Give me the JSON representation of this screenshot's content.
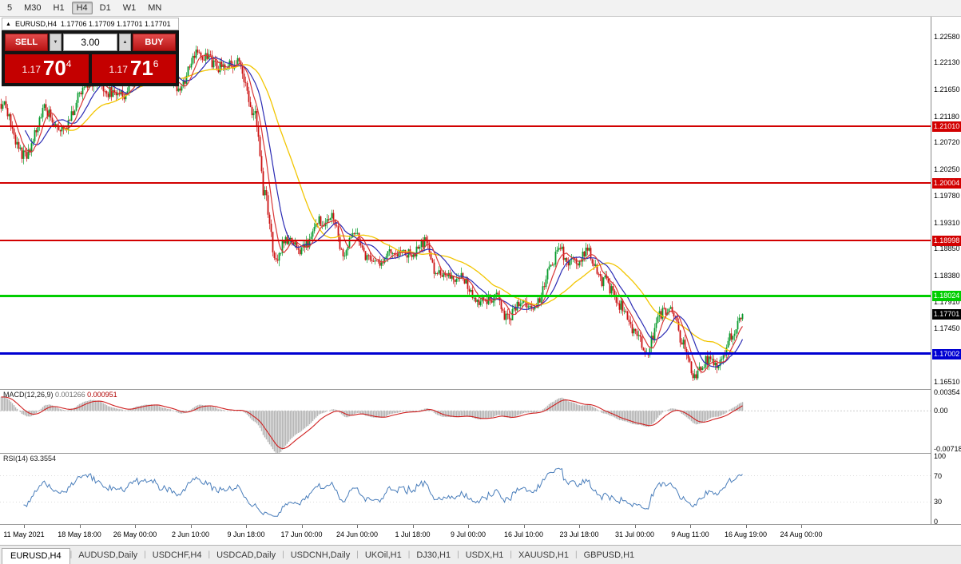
{
  "toolbar": {
    "timeframes": [
      {
        "label": "5",
        "active": false
      },
      {
        "label": "M30",
        "active": false
      },
      {
        "label": "H1",
        "active": false
      },
      {
        "label": "H4",
        "active": true
      },
      {
        "label": "D1",
        "active": false
      },
      {
        "label": "W1",
        "active": false
      },
      {
        "label": "MN",
        "active": false
      }
    ]
  },
  "chart_header": {
    "collapse_icon": "▲",
    "symbol": "EURUSD,H4",
    "ohlc": "1.17706 1.17709 1.17701 1.17701"
  },
  "trade_panel": {
    "sell_label": "SELL",
    "buy_label": "BUY",
    "lot_value": "3.00",
    "lot_down_icon": "▼",
    "lot_up_icon": "▲",
    "sell_price": {
      "prefix": "1.17",
      "main": "70",
      "sup": "4"
    },
    "buy_price": {
      "prefix": "1.17",
      "main": "71",
      "sup": "6"
    }
  },
  "price_axis_labels": [
    "1.22580",
    "1.22130",
    "1.21650",
    "1.21180",
    "1.20720",
    "1.20250",
    "1.19780",
    "1.19310",
    "1.18850",
    "1.18380",
    "1.17910",
    "1.17450",
    "1.16510"
  ],
  "current_price_marker": {
    "label": "1.17701",
    "value": 1.17701,
    "bg": "#000000"
  },
  "hlines": [
    {
      "label": "1.21010",
      "value": 1.2101,
      "color": "#d20000",
      "thickness": 2
    },
    {
      "label": "1.20004",
      "value": 1.20004,
      "color": "#d20000",
      "thickness": 2
    },
    {
      "label": "1.18998",
      "value": 1.18998,
      "color": "#d20000",
      "thickness": 2
    },
    {
      "label": "1.18024",
      "value": 1.18024,
      "color": "#00ce00",
      "thickness": 3
    },
    {
      "label": "1.17002",
      "value": 1.17002,
      "color": "#0000d2",
      "thickness": 3
    }
  ],
  "macd_panel": {
    "name": "MACD(12,26,9)",
    "main_value": "0.001266",
    "signal_value": "0.000951",
    "axis": [
      {
        "label": "0.00354",
        "value": 0.00354
      },
      {
        "label": "0.00",
        "value": 0
      },
      {
        "label": "-0.00718",
        "value": -0.00718
      }
    ]
  },
  "rsi_panel": {
    "name": "RSI(14)",
    "value": "63.3554",
    "axis": [
      {
        "label": "100",
        "value": 100
      },
      {
        "label": "70",
        "value": 70
      },
      {
        "label": "30",
        "value": 30
      },
      {
        "label": "0",
        "value": 0
      }
    ]
  },
  "time_axis": [
    "11 May 2021",
    "18 May 18:00",
    "26 May 00:00",
    "2 Jun 10:00",
    "9 Jun 18:00",
    "17 Jun 00:00",
    "24 Jun 00:00",
    "1 Jul 18:00",
    "9 Jul 00:00",
    "16 Jul 10:00",
    "23 Jul 18:00",
    "31 Jul 00:00",
    "9 Aug 11:00",
    "16 Aug 19:00",
    "24 Aug 00:00"
  ],
  "tabs": [
    {
      "label": "EURUSD,H4",
      "active": true
    },
    {
      "label": "AUDUSD,Daily",
      "active": false
    },
    {
      "label": "USDCHF,H4",
      "active": false
    },
    {
      "label": "USDCAD,Daily",
      "active": false
    },
    {
      "label": "USDCNH,Daily",
      "active": false
    },
    {
      "label": "UKOil,H1",
      "active": false
    },
    {
      "label": "DJ30,H1",
      "active": false
    },
    {
      "label": "USDX,H1",
      "active": false
    },
    {
      "label": "XAUUSD,H1",
      "active": false
    },
    {
      "label": "GBPUSD,H1",
      "active": false
    }
  ],
  "chart_data": {
    "type": "candlestick",
    "symbol": "EURUSD",
    "period": "H4",
    "price_range": [
      1.1638,
      1.2293
    ],
    "last_close": 1.17701,
    "up_color": "#089b2d",
    "down_color": "#cc1111",
    "levels": [
      1.2101,
      1.20004,
      1.18998,
      1.18024,
      1.17002
    ],
    "moving_averages": [
      {
        "period": 8,
        "color": "#d93636"
      },
      {
        "period": 16,
        "color": "#2b2bb4"
      },
      {
        "period": 40,
        "color": "#f2c500"
      }
    ],
    "macd": {
      "fast": 12,
      "slow": 26,
      "signal": 9,
      "current_main": 0.001266,
      "current_signal": 0.000951,
      "axis_range": [
        -0.008,
        0.004
      ]
    },
    "rsi": {
      "period": 14,
      "current": 63.3554
    },
    "path_anchors": [
      [
        0.0,
        1.214
      ],
      [
        0.032,
        1.2045
      ],
      [
        0.059,
        1.213
      ],
      [
        0.081,
        1.2095
      ],
      [
        0.118,
        1.218
      ],
      [
        0.161,
        1.2155
      ],
      [
        0.199,
        1.221
      ],
      [
        0.242,
        1.217
      ],
      [
        0.263,
        1.223
      ],
      [
        0.296,
        1.2205
      ],
      [
        0.317,
        1.2215
      ],
      [
        0.342,
        1.212
      ],
      [
        0.355,
        1.198
      ],
      [
        0.371,
        1.1865
      ],
      [
        0.387,
        1.1905
      ],
      [
        0.403,
        1.188
      ],
      [
        0.43,
        1.1935
      ],
      [
        0.446,
        1.194
      ],
      [
        0.462,
        1.187
      ],
      [
        0.478,
        1.1915
      ],
      [
        0.5,
        1.1855
      ],
      [
        0.527,
        1.188
      ],
      [
        0.554,
        1.1875
      ],
      [
        0.57,
        1.1895
      ],
      [
        0.591,
        1.184
      ],
      [
        0.618,
        1.1835
      ],
      [
        0.645,
        1.179
      ],
      [
        0.667,
        1.1805
      ],
      [
        0.683,
        1.1765
      ],
      [
        0.704,
        1.1795
      ],
      [
        0.72,
        1.178
      ],
      [
        0.742,
        1.1855
      ],
      [
        0.753,
        1.1885
      ],
      [
        0.769,
        1.186
      ],
      [
        0.79,
        1.188
      ],
      [
        0.812,
        1.183
      ],
      [
        0.833,
        1.179
      ],
      [
        0.855,
        1.174
      ],
      [
        0.871,
        1.1705
      ],
      [
        0.887,
        1.1765
      ],
      [
        0.903,
        1.178
      ],
      [
        0.919,
        1.172
      ],
      [
        0.935,
        1.166
      ],
      [
        0.952,
        1.169
      ],
      [
        0.968,
        1.168
      ],
      [
        0.984,
        1.173
      ],
      [
        1.0,
        1.17701
      ]
    ]
  }
}
